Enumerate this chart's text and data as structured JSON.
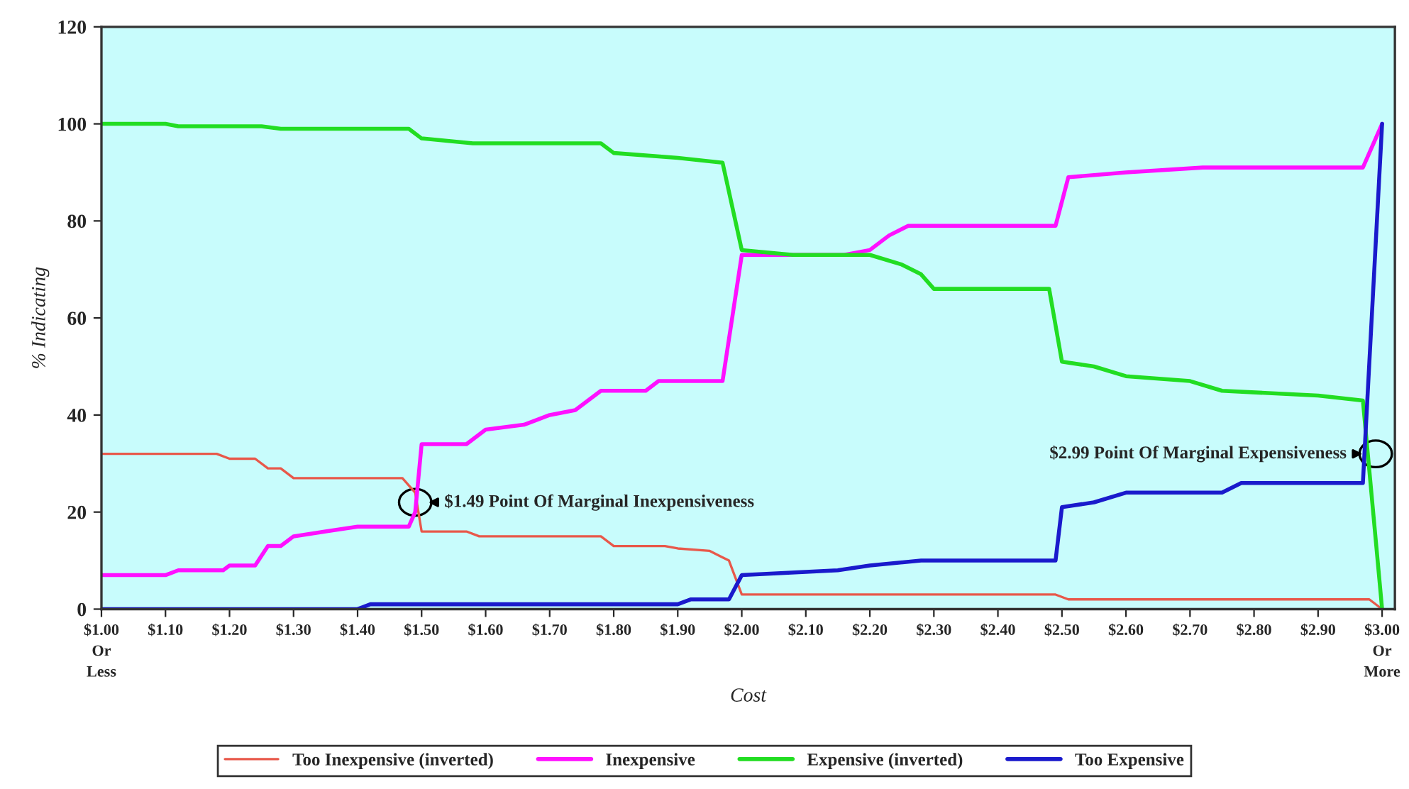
{
  "chart_data": {
    "type": "line",
    "xlabel": "Cost",
    "ylabel": "% Indicating",
    "xlim": [
      1.0,
      3.02
    ],
    "ylim": [
      0,
      120
    ],
    "xticks": [
      {
        "value": 1.0,
        "label": "$1.00\nOr\nLess"
      },
      {
        "value": 1.1,
        "label": "$1.10"
      },
      {
        "value": 1.2,
        "label": "$1.20"
      },
      {
        "value": 1.3,
        "label": "$1.30"
      },
      {
        "value": 1.4,
        "label": "$1.40"
      },
      {
        "value": 1.5,
        "label": "$1.50"
      },
      {
        "value": 1.6,
        "label": "$1.60"
      },
      {
        "value": 1.7,
        "label": "$1.70"
      },
      {
        "value": 1.8,
        "label": "$1.80"
      },
      {
        "value": 1.9,
        "label": "$1.90"
      },
      {
        "value": 2.0,
        "label": "$2.00"
      },
      {
        "value": 2.1,
        "label": "$2.10"
      },
      {
        "value": 2.2,
        "label": "$2.20"
      },
      {
        "value": 2.3,
        "label": "$2.30"
      },
      {
        "value": 2.4,
        "label": "$2.40"
      },
      {
        "value": 2.5,
        "label": "$2.50"
      },
      {
        "value": 2.6,
        "label": "$2.60"
      },
      {
        "value": 2.7,
        "label": "$2.70"
      },
      {
        "value": 2.8,
        "label": "$2.80"
      },
      {
        "value": 2.9,
        "label": "$2.90"
      },
      {
        "value": 3.0,
        "label": "$3.00\nOr\nMore"
      }
    ],
    "yticks": [
      0,
      20,
      40,
      60,
      80,
      100,
      120
    ],
    "grid": false,
    "legend": "bottom",
    "line_style": "solid",
    "series": [
      {
        "name": "Too Inexpensive (inverted)",
        "color": "#e8584a",
        "x": [
          1.0,
          1.18,
          1.2,
          1.24,
          1.26,
          1.28,
          1.3,
          1.47,
          1.49,
          1.5,
          1.57,
          1.59,
          1.78,
          1.8,
          1.88,
          1.9,
          1.95,
          1.98,
          2.0,
          2.49,
          2.51,
          2.98,
          3.0
        ],
        "values": [
          32,
          32,
          31,
          31,
          29,
          29,
          27,
          27,
          24,
          16,
          16,
          15,
          15,
          13,
          13,
          12.5,
          12,
          10,
          3,
          3,
          2,
          2,
          0
        ]
      },
      {
        "name": "Inexpensive",
        "color": "#ff10ff",
        "x": [
          1.0,
          1.1,
          1.12,
          1.19,
          1.2,
          1.24,
          1.26,
          1.28,
          1.3,
          1.35,
          1.4,
          1.48,
          1.49,
          1.5,
          1.57,
          1.6,
          1.66,
          1.7,
          1.74,
          1.78,
          1.85,
          1.87,
          1.97,
          2.0,
          2.16,
          2.2,
          2.23,
          2.26,
          2.49,
          2.51,
          2.6,
          2.72,
          2.97,
          3.0
        ],
        "values": [
          7,
          7,
          8,
          8,
          9,
          9,
          13,
          13,
          15,
          16,
          17,
          17,
          20,
          34,
          34,
          37,
          38,
          40,
          41,
          45,
          45,
          47,
          47,
          73,
          73,
          74,
          77,
          79,
          79,
          89,
          90,
          91,
          91,
          100
        ]
      },
      {
        "name": "Expensive (inverted)",
        "color": "#22dd22",
        "x": [
          1.0,
          1.1,
          1.12,
          1.25,
          1.28,
          1.48,
          1.5,
          1.58,
          1.78,
          1.8,
          1.9,
          1.97,
          2.0,
          2.08,
          2.2,
          2.25,
          2.28,
          2.3,
          2.48,
          2.5,
          2.55,
          2.6,
          2.7,
          2.75,
          2.9,
          2.97,
          3.0
        ],
        "values": [
          100,
          100,
          99.5,
          99.5,
          99,
          99,
          97,
          96,
          96,
          94,
          93,
          92,
          74,
          73,
          73,
          71,
          69,
          66,
          66,
          51,
          50,
          48,
          47,
          45,
          44,
          43,
          0
        ]
      },
      {
        "name": "Too Expensive",
        "color": "#1a1acc",
        "x": [
          1.0,
          1.4,
          1.42,
          1.9,
          1.92,
          1.98,
          2.0,
          2.15,
          2.2,
          2.28,
          2.49,
          2.5,
          2.55,
          2.6,
          2.75,
          2.78,
          2.97,
          3.0
        ],
        "values": [
          0,
          0,
          1,
          1,
          2,
          2,
          7,
          8,
          9,
          10,
          10,
          21,
          22,
          24,
          24,
          26,
          26,
          100
        ]
      }
    ],
    "annotations": [
      {
        "text": "$1.49 Point Of Marginal Inexpensiveness",
        "x": 1.49,
        "y": 22
      },
      {
        "text": "$2.99 Point Of Marginal Expensiveness",
        "x": 2.99,
        "y": 32
      }
    ]
  }
}
